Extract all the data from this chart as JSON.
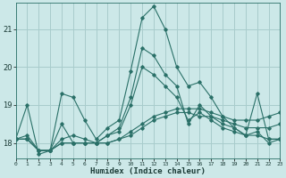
{
  "xlabel": "Humidex (Indice chaleur)",
  "bg_color": "#cce8e8",
  "grid_color": "#a8cccc",
  "line_color": "#2a7068",
  "xlim": [
    0,
    23
  ],
  "ylim": [
    17.6,
    21.7
  ],
  "yticks": [
    18,
    19,
    20,
    21
  ],
  "xticks": [
    0,
    1,
    2,
    3,
    4,
    5,
    6,
    7,
    8,
    9,
    10,
    11,
    12,
    13,
    14,
    15,
    16,
    17,
    18,
    19,
    20,
    21,
    22,
    23
  ],
  "xtick_labels": [
    "0",
    "1",
    "2",
    "3",
    "4",
    "5",
    "6",
    "7",
    "8",
    "9",
    "10",
    "11",
    "12",
    "13",
    "14",
    "15",
    "16",
    "17",
    "18",
    "19",
    "20",
    "21",
    "22",
    "23"
  ],
  "series": [
    [
      18.1,
      19.0,
      17.7,
      17.8,
      19.3,
      19.2,
      18.6,
      18.1,
      18.4,
      18.6,
      19.9,
      21.3,
      21.6,
      21.0,
      20.0,
      19.5,
      19.6,
      19.2,
      18.7,
      18.4,
      18.2,
      19.3,
      18.1,
      18.1
    ],
    [
      18.1,
      18.2,
      17.8,
      17.8,
      18.5,
      18.0,
      18.0,
      18.0,
      18.2,
      18.4,
      19.2,
      20.5,
      20.3,
      19.8,
      19.5,
      18.5,
      19.0,
      18.7,
      18.5,
      18.4,
      18.2,
      18.3,
      18.0,
      18.1
    ],
    [
      18.1,
      18.1,
      17.8,
      17.8,
      18.0,
      18.0,
      18.0,
      18.0,
      18.0,
      18.1,
      18.3,
      18.5,
      18.7,
      18.8,
      18.9,
      18.9,
      18.9,
      18.8,
      18.7,
      18.6,
      18.6,
      18.6,
      18.7,
      18.8
    ],
    [
      18.1,
      18.1,
      17.8,
      17.8,
      18.0,
      18.0,
      18.0,
      18.0,
      18.0,
      18.1,
      18.2,
      18.4,
      18.6,
      18.7,
      18.8,
      18.8,
      18.7,
      18.7,
      18.6,
      18.5,
      18.4,
      18.4,
      18.4,
      18.5
    ],
    [
      18.1,
      18.1,
      17.8,
      17.8,
      18.1,
      18.2,
      18.1,
      18.0,
      18.2,
      18.3,
      19.0,
      20.0,
      19.8,
      19.5,
      19.2,
      18.6,
      18.8,
      18.6,
      18.4,
      18.3,
      18.2,
      18.2,
      18.1,
      18.1
    ]
  ]
}
